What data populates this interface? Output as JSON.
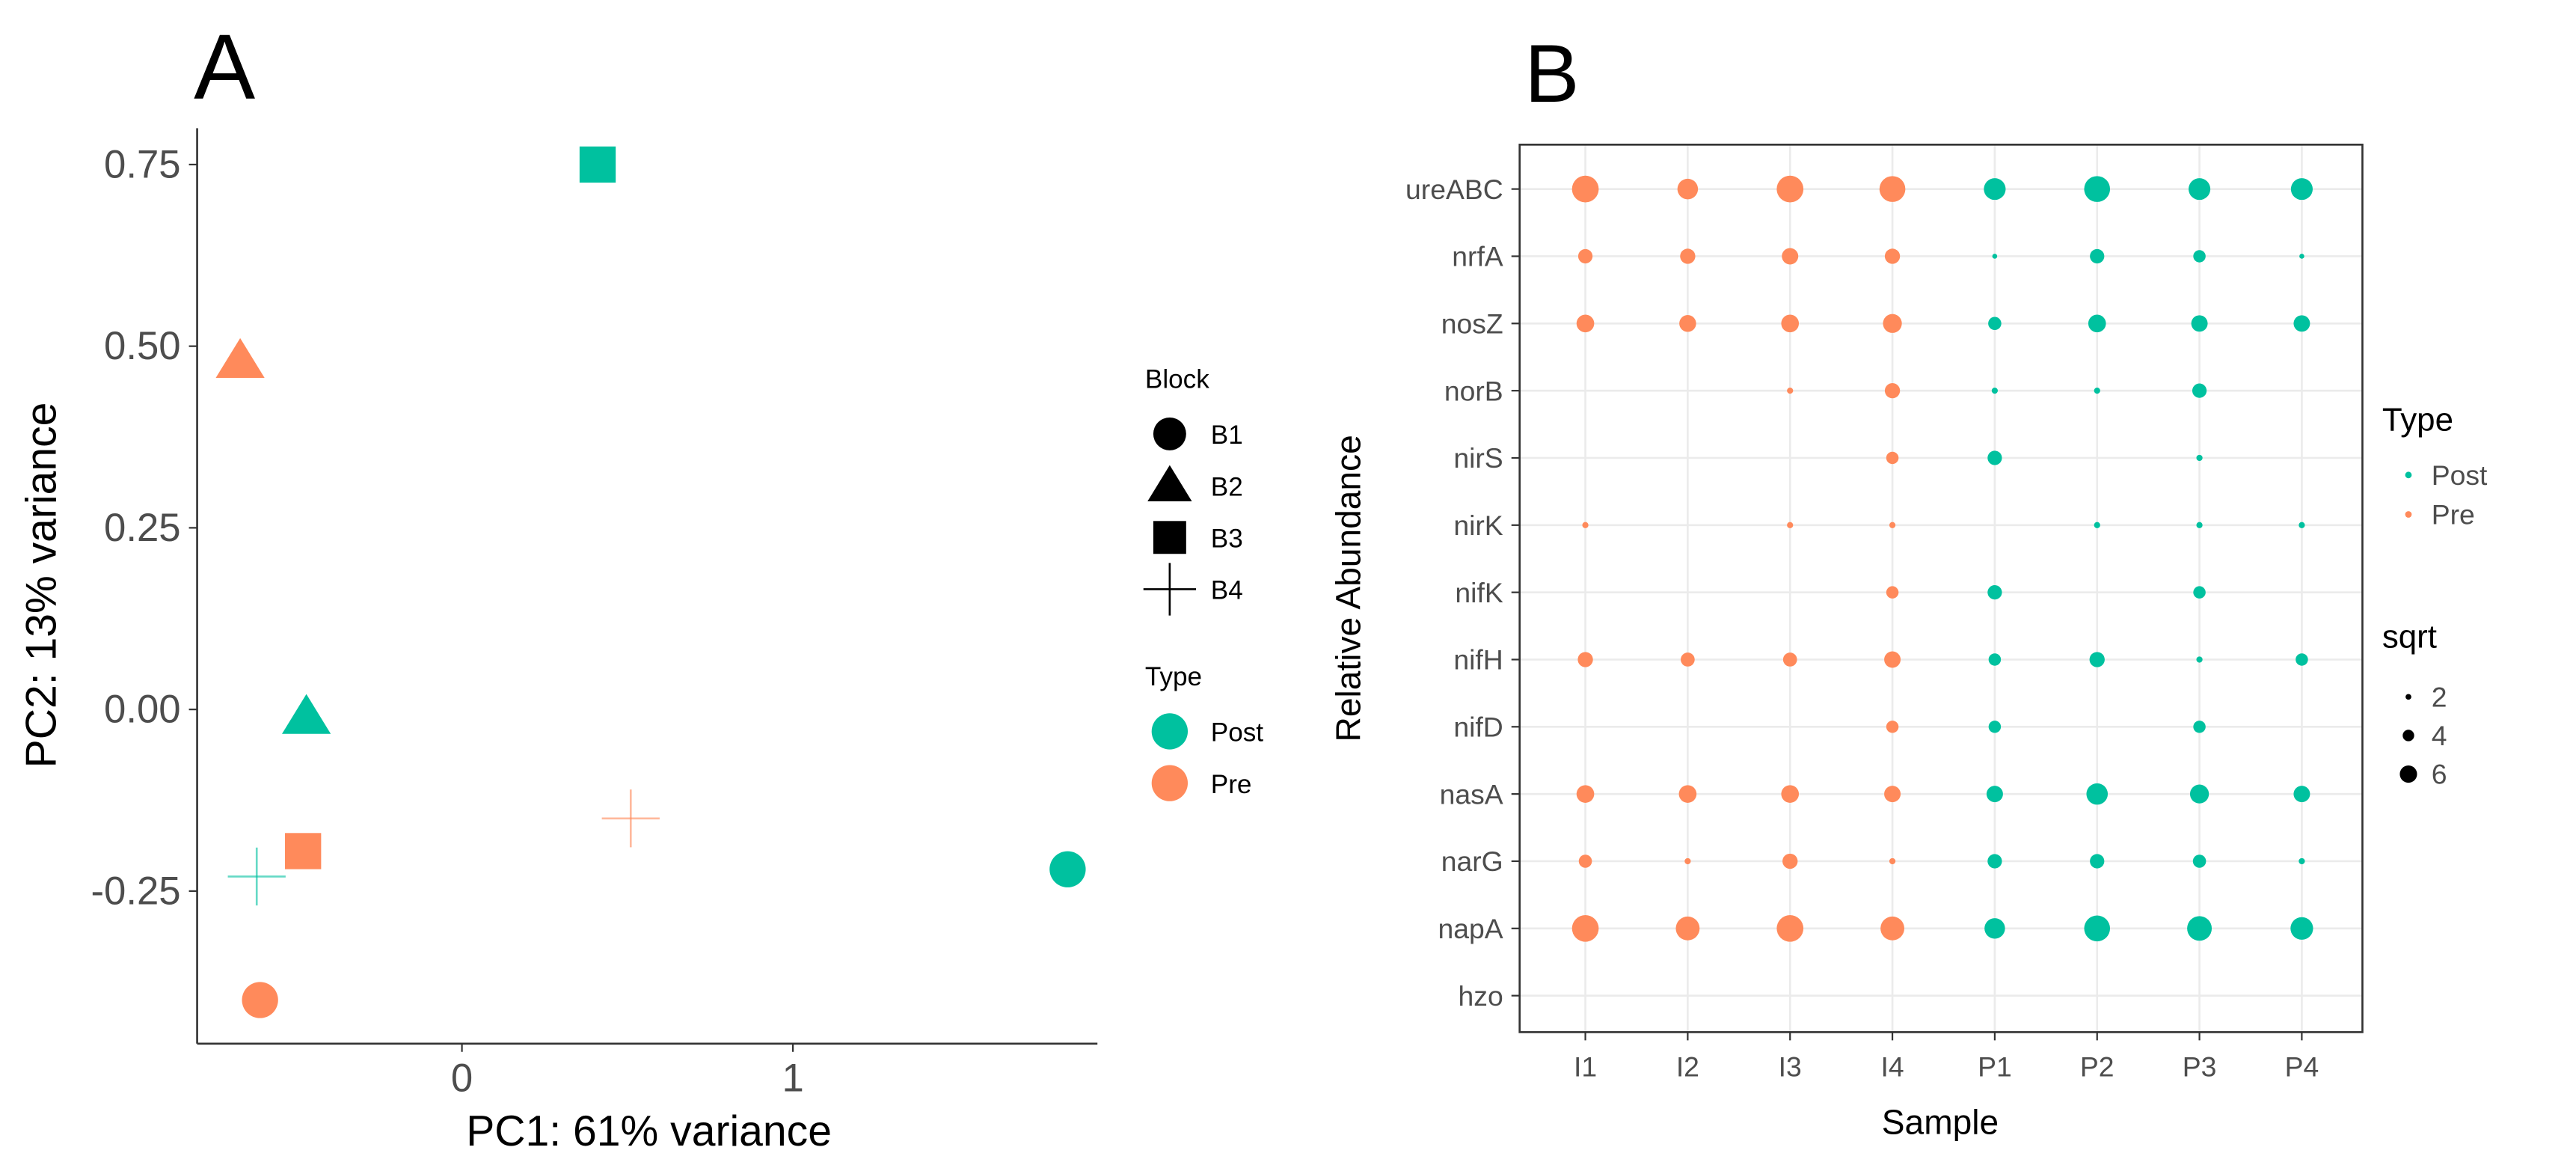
{
  "colors": {
    "Post": "#00C19F",
    "Pre": "#FF8A5B"
  },
  "chart_data": [
    {
      "panel_label": "A",
      "type": "scatter",
      "xlabel": "PC1: 61% variance",
      "ylabel": "PC2: 13% variance",
      "xlim": [
        -0.8,
        1.92
      ],
      "ylim": [
        -0.46,
        0.8
      ],
      "xticks": [
        0,
        1
      ],
      "xtick_labels": [
        "0",
        "1"
      ],
      "yticks": [
        0.75,
        0.5,
        0.25,
        0,
        -0.25
      ],
      "ytick_labels": [
        "0.75",
        "0.50",
        "0.25",
        "0.00",
        "-0.25"
      ],
      "grid": false,
      "legend_placement": "right",
      "legends": {
        "shape": {
          "title": "Block",
          "entries": [
            "B1",
            "B2",
            "B3",
            "B4"
          ],
          "shapes": [
            "circle",
            "triangle",
            "square",
            "plus"
          ]
        },
        "color": {
          "title": "Type",
          "entries": [
            "Post",
            "Pre"
          ]
        }
      },
      "points": [
        {
          "x": 0.41,
          "y": 0.75,
          "type": "Post",
          "block": "B3"
        },
        {
          "x": -0.67,
          "y": 0.48,
          "type": "Pre",
          "block": "B2"
        },
        {
          "x": -0.47,
          "y": -0.01,
          "type": "Post",
          "block": "B2"
        },
        {
          "x": 0.51,
          "y": -0.15,
          "type": "Pre",
          "block": "B4"
        },
        {
          "x": 1.83,
          "y": -0.22,
          "type": "Post",
          "block": "B1"
        },
        {
          "x": -0.48,
          "y": -0.195,
          "type": "Pre",
          "block": "B3"
        },
        {
          "x": -0.62,
          "y": -0.23,
          "type": "Post",
          "block": "B4"
        },
        {
          "x": -0.61,
          "y": -0.4,
          "type": "Pre",
          "block": "B1"
        }
      ]
    },
    {
      "panel_label": "B",
      "type": "scatter",
      "xlabel": "Sample",
      "ylabel": "Relative Abundance",
      "grid": true,
      "legend_placement": "right",
      "categories_x": [
        "I1",
        "I2",
        "I3",
        "I4",
        "P1",
        "P2",
        "P3",
        "P4"
      ],
      "sample_type": [
        "Pre",
        "Pre",
        "Pre",
        "Pre",
        "Post",
        "Post",
        "Post",
        "Post"
      ],
      "categories_y": [
        "ureABC",
        "nrfA",
        "nosZ",
        "norB",
        "nirS",
        "nirK",
        "nifK",
        "nifH",
        "nifD",
        "nasA",
        "narG",
        "napA",
        "hzo"
      ],
      "legends": {
        "color": {
          "title": "Type",
          "entries": [
            "Post",
            "Pre"
          ]
        },
        "size": {
          "title": "sqrt",
          "entries": [
            2,
            4,
            6
          ]
        }
      },
      "sqrt_values": [
        [
          6.5,
          5.0,
          6.5,
          6.3,
          5.3,
          6.3,
          5.3,
          5.3
        ],
        [
          3.5,
          3.7,
          4.0,
          3.7,
          1.2,
          3.5,
          3.0,
          1.2
        ],
        [
          4.3,
          4.1,
          4.3,
          4.6,
          3.2,
          4.3,
          4.0,
          4.0
        ],
        [
          0,
          0,
          1.5,
          3.7,
          1.5,
          1.5,
          3.5,
          0
        ],
        [
          0,
          0,
          0,
          3.0,
          3.5,
          0,
          1.5,
          0
        ],
        [
          1.5,
          0,
          1.5,
          1.5,
          0,
          1.5,
          1.5,
          1.5
        ],
        [
          0,
          0,
          0,
          3.0,
          3.5,
          0,
          3.0,
          0
        ],
        [
          3.7,
          3.4,
          3.4,
          4.0,
          3.0,
          3.7,
          1.5,
          3.0
        ],
        [
          0,
          0,
          0,
          3.0,
          3.0,
          0,
          3.0,
          0
        ],
        [
          4.3,
          4.3,
          4.3,
          4.0,
          4.0,
          5.2,
          4.6,
          4.0
        ],
        [
          3.2,
          1.5,
          3.7,
          1.5,
          3.5,
          3.5,
          3.2,
          1.5
        ],
        [
          6.5,
          5.8,
          6.5,
          5.8,
          5.0,
          6.3,
          6.0,
          5.5
        ],
        [
          0,
          0,
          0,
          0,
          0,
          0,
          0,
          0
        ]
      ]
    }
  ]
}
